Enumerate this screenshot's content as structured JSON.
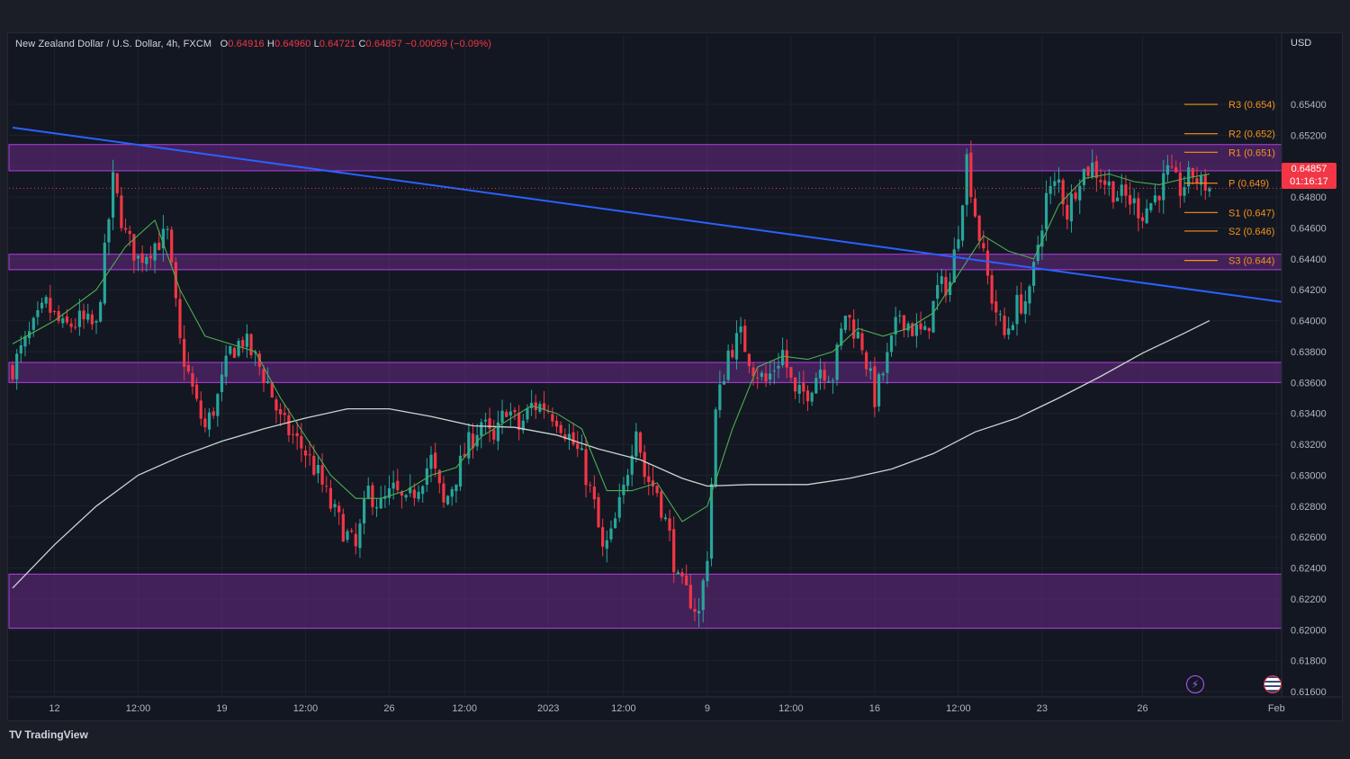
{
  "header": {
    "title": "New Zealand Dollar / U.S. Dollar, 4h, FXCM",
    "open_label": "O",
    "open": "0.64916",
    "high_label": "H",
    "high": "0.64960",
    "low_label": "L",
    "low": "0.64721",
    "close_label": "C",
    "close": "0.64857",
    "change": "−0.00059 (−0.09%)"
  },
  "currency": "USD",
  "last_price": {
    "price": "0.64857",
    "countdown": "01:16:17"
  },
  "brand": "TradingView",
  "colors": {
    "background": "#131722",
    "up": "#26a69a",
    "down": "#f23645",
    "zone_fill": "#6a2a86",
    "zone_border": "#b040e0",
    "trendline": "#2962ff",
    "sma_short": "#4caf50",
    "sma_long": "#c8d6d0",
    "pivot": "#f7931a"
  },
  "chart_data": {
    "type": "candlestick",
    "symbol": "NZDUSD",
    "timeframe": "4h",
    "y_axis": {
      "ylim": [
        0.616,
        0.6558
      ],
      "ticks": [
        "0.65400",
        "0.65200",
        "0.65000",
        "0.64800",
        "0.64600",
        "0.64400",
        "0.64200",
        "0.64000",
        "0.63800",
        "0.63600",
        "0.63400",
        "0.63200",
        "0.63000",
        "0.62800",
        "0.62600",
        "0.62400",
        "0.62200",
        "0.62000",
        "0.61800",
        "0.61600"
      ]
    },
    "x_axis": {
      "bars": 300,
      "ticks": [
        {
          "label": "12",
          "bar": 10
        },
        {
          "label": "12:00",
          "bar": 30
        },
        {
          "label": "19",
          "bar": 50
        },
        {
          "label": "12:00",
          "bar": 70
        },
        {
          "label": "26",
          "bar": 90
        },
        {
          "label": "12:00",
          "bar": 108
        },
        {
          "label": "2023",
          "bar": 128
        },
        {
          "label": "12:00",
          "bar": 146
        },
        {
          "label": "9",
          "bar": 166
        },
        {
          "label": "12:00",
          "bar": 186
        },
        {
          "label": "16",
          "bar": 206
        },
        {
          "label": "12:00",
          "bar": 226
        },
        {
          "label": "23",
          "bar": 246
        },
        {
          "label": "26",
          "bar": 270
        },
        {
          "label": "Feb",
          "bar": 302
        }
      ]
    },
    "zones": [
      {
        "low": 0.6497,
        "high": 0.6514
      },
      {
        "low": 0.6433,
        "high": 0.6443
      },
      {
        "low": 0.636,
        "high": 0.6373
      },
      {
        "low": 0.6201,
        "high": 0.6236
      }
    ],
    "pivots": [
      {
        "label": "R3 (0.654)",
        "value": 0.654
      },
      {
        "label": "R2 (0.652)",
        "value": 0.6521
      },
      {
        "label": "R1 (0.651)",
        "value": 0.6509
      },
      {
        "label": "P (0.649)",
        "value": 0.6489
      },
      {
        "label": "S1 (0.647)",
        "value": 0.647
      },
      {
        "label": "S2 (0.646)",
        "value": 0.6458
      },
      {
        "label": "S3 (0.644)",
        "value": 0.6439
      }
    ],
    "trendline": {
      "start": {
        "bar": 0,
        "value": 0.6525
      },
      "end": {
        "bar": 309,
        "value": 0.641
      }
    },
    "current_price": 0.64857,
    "close_path": [
      [
        0,
        0.637
      ],
      [
        4,
        0.639
      ],
      [
        8,
        0.641
      ],
      [
        12,
        0.6395
      ],
      [
        16,
        0.64
      ],
      [
        20,
        0.6395
      ],
      [
        24,
        0.649
      ],
      [
        27,
        0.6455
      ],
      [
        30,
        0.644
      ],
      [
        34,
        0.645
      ],
      [
        37,
        0.6455
      ],
      [
        40,
        0.6385
      ],
      [
        44,
        0.6345
      ],
      [
        46,
        0.633
      ],
      [
        49,
        0.635
      ],
      [
        52,
        0.638
      ],
      [
        55,
        0.6388
      ],
      [
        58,
        0.6375
      ],
      [
        61,
        0.636
      ],
      [
        64,
        0.6335
      ],
      [
        67,
        0.6325
      ],
      [
        70,
        0.6315
      ],
      [
        73,
        0.63
      ],
      [
        76,
        0.628
      ],
      [
        79,
        0.6265
      ],
      [
        82,
        0.6252
      ],
      [
        85,
        0.629
      ],
      [
        88,
        0.628
      ],
      [
        91,
        0.629
      ],
      [
        94,
        0.628
      ],
      [
        97,
        0.6295
      ],
      [
        100,
        0.631
      ],
      [
        103,
        0.628
      ],
      [
        106,
        0.63
      ],
      [
        109,
        0.632
      ],
      [
        112,
        0.6335
      ],
      [
        115,
        0.632
      ],
      [
        118,
        0.6345
      ],
      [
        121,
        0.633
      ],
      [
        124,
        0.6345
      ],
      [
        127,
        0.6345
      ],
      [
        130,
        0.6338
      ],
      [
        133,
        0.6325
      ],
      [
        136,
        0.631
      ],
      [
        139,
        0.628
      ],
      [
        141,
        0.625
      ],
      [
        143,
        0.626
      ],
      [
        146,
        0.629
      ],
      [
        149,
        0.6335
      ],
      [
        151,
        0.63
      ],
      [
        154,
        0.629
      ],
      [
        157,
        0.626
      ],
      [
        159,
        0.623
      ],
      [
        162,
        0.622
      ],
      [
        164,
        0.621
      ],
      [
        166,
        0.625
      ],
      [
        168,
        0.634
      ],
      [
        171,
        0.638
      ],
      [
        174,
        0.639
      ],
      [
        177,
        0.637
      ],
      [
        180,
        0.636
      ],
      [
        184,
        0.638
      ],
      [
        187,
        0.635
      ],
      [
        190,
        0.6355
      ],
      [
        193,
        0.637
      ],
      [
        196,
        0.6365
      ],
      [
        199,
        0.6405
      ],
      [
        201,
        0.6395
      ],
      [
        203,
        0.6385
      ],
      [
        206,
        0.635
      ],
      [
        209,
        0.6375
      ],
      [
        212,
        0.6405
      ],
      [
        215,
        0.6395
      ],
      [
        218,
        0.639
      ],
      [
        221,
        0.642
      ],
      [
        224,
        0.6425
      ],
      [
        226,
        0.646
      ],
      [
        228,
        0.6505
      ],
      [
        230,
        0.647
      ],
      [
        232,
        0.644
      ],
      [
        234,
        0.6415
      ],
      [
        237,
        0.639
      ],
      [
        240,
        0.641
      ],
      [
        243,
        0.6415
      ],
      [
        245,
        0.645
      ],
      [
        247,
        0.648
      ],
      [
        250,
        0.649
      ],
      [
        252,
        0.647
      ],
      [
        255,
        0.6495
      ],
      [
        258,
        0.65
      ],
      [
        261,
        0.649
      ],
      [
        264,
        0.6482
      ],
      [
        267,
        0.6478
      ],
      [
        270,
        0.647
      ],
      [
        273,
        0.648
      ],
      [
        276,
        0.6495
      ],
      [
        279,
        0.6485
      ],
      [
        282,
        0.6495
      ],
      [
        284,
        0.6488
      ],
      [
        286,
        0.6488
      ]
    ],
    "sma_short_path": [
      [
        0,
        0.6385
      ],
      [
        10,
        0.64
      ],
      [
        20,
        0.642
      ],
      [
        27,
        0.6448
      ],
      [
        34,
        0.6465
      ],
      [
        40,
        0.642
      ],
      [
        46,
        0.639
      ],
      [
        52,
        0.6385
      ],
      [
        58,
        0.638
      ],
      [
        64,
        0.635
      ],
      [
        70,
        0.6325
      ],
      [
        76,
        0.63
      ],
      [
        82,
        0.6285
      ],
      [
        88,
        0.6285
      ],
      [
        94,
        0.629
      ],
      [
        100,
        0.63
      ],
      [
        106,
        0.6305
      ],
      [
        112,
        0.6325
      ],
      [
        118,
        0.6335
      ],
      [
        124,
        0.6345
      ],
      [
        130,
        0.634
      ],
      [
        136,
        0.633
      ],
      [
        142,
        0.629
      ],
      [
        148,
        0.629
      ],
      [
        154,
        0.6295
      ],
      [
        160,
        0.627
      ],
      [
        166,
        0.628
      ],
      [
        172,
        0.633
      ],
      [
        178,
        0.637
      ],
      [
        184,
        0.6377
      ],
      [
        190,
        0.6375
      ],
      [
        196,
        0.638
      ],
      [
        202,
        0.6395
      ],
      [
        208,
        0.639
      ],
      [
        214,
        0.6395
      ],
      [
        220,
        0.6405
      ],
      [
        226,
        0.643
      ],
      [
        232,
        0.6455
      ],
      [
        238,
        0.6445
      ],
      [
        244,
        0.644
      ],
      [
        250,
        0.6475
      ],
      [
        256,
        0.6492
      ],
      [
        262,
        0.6495
      ],
      [
        268,
        0.649
      ],
      [
        274,
        0.6488
      ],
      [
        280,
        0.6492
      ],
      [
        286,
        0.6495
      ]
    ],
    "sma_long_path": [
      [
        0,
        0.6227
      ],
      [
        10,
        0.6255
      ],
      [
        20,
        0.628
      ],
      [
        30,
        0.63
      ],
      [
        40,
        0.6312
      ],
      [
        50,
        0.6322
      ],
      [
        60,
        0.633
      ],
      [
        70,
        0.6337
      ],
      [
        80,
        0.6343
      ],
      [
        90,
        0.6343
      ],
      [
        100,
        0.6338
      ],
      [
        110,
        0.6332
      ],
      [
        120,
        0.6331
      ],
      [
        130,
        0.6326
      ],
      [
        140,
        0.6317
      ],
      [
        150,
        0.631
      ],
      [
        160,
        0.6298
      ],
      [
        166,
        0.6293
      ],
      [
        176,
        0.6294
      ],
      [
        190,
        0.6294
      ],
      [
        200,
        0.6298
      ],
      [
        210,
        0.6304
      ],
      [
        220,
        0.6314
      ],
      [
        230,
        0.6328
      ],
      [
        240,
        0.6337
      ],
      [
        250,
        0.635
      ],
      [
        260,
        0.6364
      ],
      [
        270,
        0.6379
      ],
      [
        280,
        0.6392
      ],
      [
        286,
        0.64
      ]
    ]
  }
}
